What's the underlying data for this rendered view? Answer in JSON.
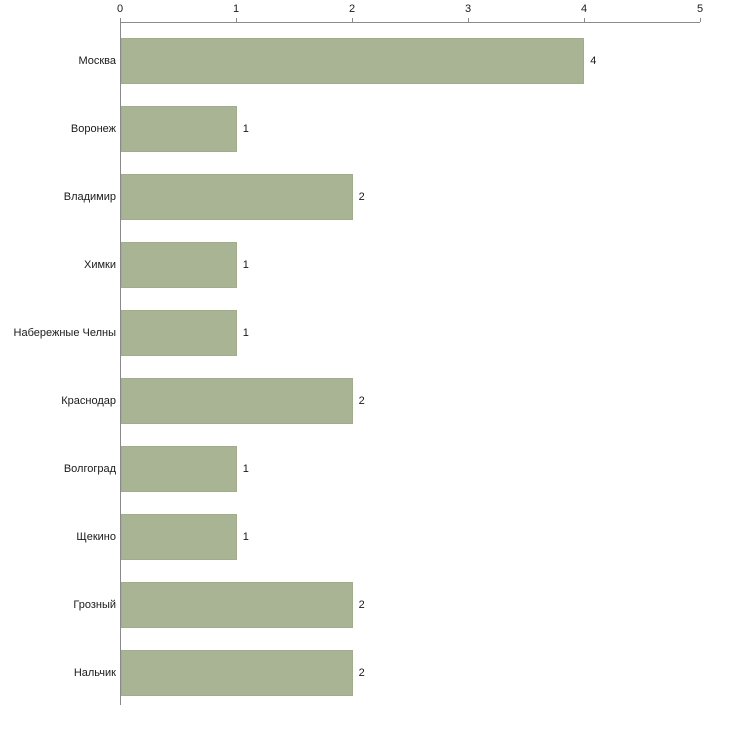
{
  "chart_data": {
    "type": "bar",
    "orientation": "horizontal",
    "title": "",
    "xlabel": "",
    "ylabel": "",
    "categories": [
      "Москва",
      "Воронеж",
      "Владимир",
      "Химки",
      "Набережные Челны",
      "Краснодар",
      "Волгоград",
      "Щекино",
      "Грозный",
      "Нальчик"
    ],
    "values": [
      4,
      1,
      2,
      1,
      1,
      2,
      1,
      1,
      2,
      2
    ],
    "x_ticks": [
      0,
      1,
      2,
      3,
      4,
      5
    ],
    "xlim": [
      0,
      5
    ],
    "grid": "off",
    "legend": "none",
    "value_labels": true,
    "bar_color": "#a8b494",
    "bar_border_color": "#a0ac8c",
    "axis_color": "#8a8a8a",
    "text_color": "#1a1a1a",
    "background_color": "#ffffff"
  }
}
